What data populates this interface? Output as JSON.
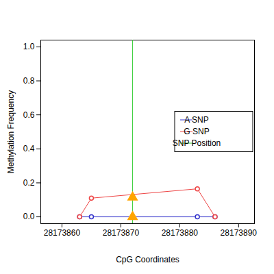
{
  "chart_data": {
    "type": "line",
    "x_label": "CpG Coordinates",
    "y_label": "Methylation Frequency",
    "xlim": [
      28173856.4,
      28173892.7
    ],
    "ylim": [
      -0.04,
      1.04
    ],
    "xticks": [
      28173860,
      28173870,
      28173880,
      28173890
    ],
    "yticks": [
      {
        "value": 0,
        "label": "0.0"
      },
      {
        "value": 0.2,
        "label": "0.2"
      },
      {
        "value": 0.4,
        "label": "0.4"
      },
      {
        "value": 0.6,
        "label": "0.6"
      },
      {
        "value": 0.8,
        "label": "0.8"
      },
      {
        "value": 1,
        "label": "1.0"
      }
    ],
    "legend": "right",
    "marker": "circle",
    "series": [
      {
        "name": "A SNP",
        "color": "#3333cc",
        "x": [
          28173863,
          28173865,
          28173883,
          28173886
        ],
        "values": [
          0,
          0,
          0,
          0
        ],
        "snp_value": 0
      },
      {
        "name": "G SNP",
        "color": "#ee4444",
        "x": [
          28173863,
          28173865,
          28173883,
          28173886
        ],
        "values": [
          0,
          0.11,
          0.165,
          0
        ],
        "snp_value": 0.115
      }
    ],
    "snp": {
      "name": "SNP Position",
      "x": 28173872,
      "color": "#33cc33"
    }
  }
}
